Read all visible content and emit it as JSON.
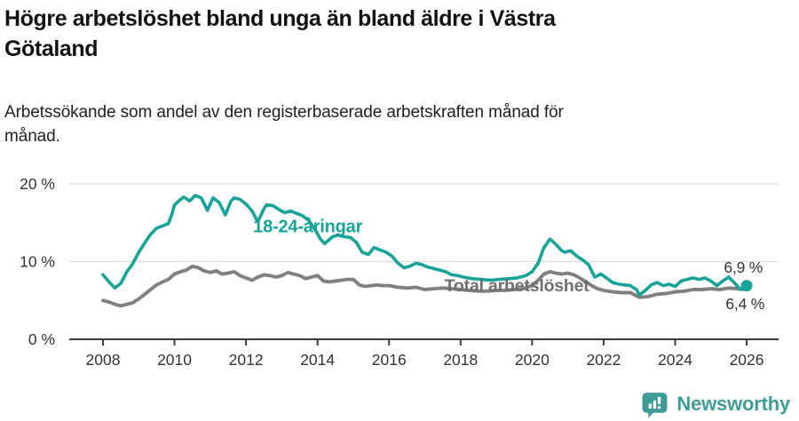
{
  "header": {
    "title_lines": [
      "Högre arbetslöshet bland unga än bland äldre i Västra",
      "Götaland"
    ],
    "subtitle_lines": [
      "Arbetssökande som andel av den registerbaserade arbetskraften månad för",
      "månad."
    ]
  },
  "chart_data": {
    "type": "line",
    "title": "Högre arbetslöshet bland unga än bland äldre i Västra Götaland",
    "subtitle": "Arbetssökande som andel av den registerbaserade arbetskraften månad för månad.",
    "unit": "%",
    "ylim": [
      0,
      20
    ],
    "xlim": [
      2007.9,
      2026.9
    ],
    "grid": "horizontal",
    "legend_position": "inline-labels",
    "colors": {
      "grid": "#dcdcdc",
      "axis": "#3a3a3a",
      "tick_text": "#333333"
    },
    "yticks": [
      {
        "value": 0,
        "label": "0 %"
      },
      {
        "value": 10,
        "label": "10 %"
      },
      {
        "value": 20,
        "label": "20 %"
      }
    ],
    "xticks": [
      {
        "value": 2008,
        "label": "2008"
      },
      {
        "value": 2010,
        "label": "2010"
      },
      {
        "value": 2012,
        "label": "2012"
      },
      {
        "value": 2014,
        "label": "2014"
      },
      {
        "value": 2016,
        "label": "2016"
      },
      {
        "value": 2018,
        "label": "2018"
      },
      {
        "value": 2020,
        "label": "2020"
      },
      {
        "value": 2022,
        "label": "2022"
      },
      {
        "value": 2024,
        "label": "2024"
      },
      {
        "value": 2026,
        "label": "2026"
      }
    ],
    "series": [
      {
        "name": "Total arbetslöshet",
        "color": "#808080",
        "width": 3.9,
        "end_marker": false,
        "end_value_label": "6,4 %",
        "x": [
          2008.0,
          2008.17,
          2008.33,
          2008.5,
          2008.67,
          2008.83,
          2009.0,
          2009.17,
          2009.33,
          2009.5,
          2009.67,
          2009.83,
          2010.0,
          2010.17,
          2010.33,
          2010.5,
          2010.67,
          2010.83,
          2011.0,
          2011.17,
          2011.33,
          2011.5,
          2011.67,
          2011.83,
          2012.0,
          2012.17,
          2012.33,
          2012.5,
          2012.67,
          2012.83,
          2013.0,
          2013.17,
          2013.33,
          2013.5,
          2013.67,
          2013.83,
          2014.0,
          2014.17,
          2014.33,
          2014.5,
          2014.67,
          2014.83,
          2015.0,
          2015.17,
          2015.33,
          2015.5,
          2015.67,
          2015.83,
          2016.0,
          2016.25,
          2016.5,
          2016.75,
          2017.0,
          2017.25,
          2017.5,
          2017.75,
          2018.0,
          2018.25,
          2018.5,
          2018.75,
          2019.0,
          2019.25,
          2019.5,
          2019.75,
          2020.0,
          2020.17,
          2020.33,
          2020.5,
          2020.67,
          2020.83,
          2021.0,
          2021.17,
          2021.33,
          2021.5,
          2021.67,
          2021.83,
          2022.0,
          2022.25,
          2022.5,
          2022.75,
          2023.0,
          2023.25,
          2023.5,
          2023.75,
          2024.0,
          2024.25,
          2024.5,
          2024.75,
          2025.0,
          2025.25,
          2025.5,
          2025.75,
          2026.0
        ],
        "values": [
          5.0,
          4.8,
          4.5,
          4.3,
          4.5,
          4.7,
          5.2,
          5.8,
          6.4,
          7.0,
          7.4,
          7.7,
          8.4,
          8.7,
          8.9,
          9.4,
          9.2,
          8.8,
          8.6,
          8.8,
          8.4,
          8.5,
          8.7,
          8.2,
          7.9,
          7.6,
          8.0,
          8.3,
          8.2,
          8.0,
          8.2,
          8.6,
          8.4,
          8.2,
          7.8,
          8.0,
          8.2,
          7.5,
          7.4,
          7.5,
          7.6,
          7.7,
          7.7,
          7.0,
          6.8,
          6.9,
          7.0,
          6.9,
          6.9,
          6.7,
          6.6,
          6.7,
          6.4,
          6.5,
          6.6,
          6.5,
          6.4,
          6.3,
          6.2,
          6.2,
          6.3,
          6.3,
          6.4,
          6.5,
          6.9,
          7.6,
          8.4,
          8.7,
          8.5,
          8.4,
          8.5,
          8.3,
          7.9,
          7.4,
          6.9,
          6.5,
          6.3,
          6.1,
          6.0,
          6.0,
          5.4,
          5.5,
          5.8,
          5.9,
          6.1,
          6.2,
          6.4,
          6.4,
          6.5,
          6.4,
          6.6,
          6.5,
          6.4
        ]
      },
      {
        "name": "18-24-åringar",
        "color": "#17a398",
        "width": 3.6,
        "end_marker": true,
        "end_value_label": "6,9 %",
        "x": [
          2008.0,
          2008.17,
          2008.33,
          2008.5,
          2008.67,
          2008.83,
          2009.0,
          2009.17,
          2009.33,
          2009.5,
          2009.67,
          2009.83,
          2009.92,
          2010.0,
          2010.17,
          2010.25,
          2010.33,
          2010.42,
          2010.58,
          2010.75,
          2010.92,
          2011.0,
          2011.08,
          2011.25,
          2011.42,
          2011.58,
          2011.67,
          2011.83,
          2012.0,
          2012.17,
          2012.33,
          2012.5,
          2012.58,
          2012.75,
          2012.92,
          2013.08,
          2013.25,
          2013.42,
          2013.58,
          2013.75,
          2013.92,
          2014.08,
          2014.2,
          2014.42,
          2014.58,
          2014.75,
          2014.92,
          2015.08,
          2015.25,
          2015.42,
          2015.58,
          2015.75,
          2015.92,
          2016.08,
          2016.25,
          2016.42,
          2016.58,
          2016.75,
          2016.92,
          2017.08,
          2017.25,
          2017.42,
          2017.58,
          2017.75,
          2017.92,
          2018.08,
          2018.33,
          2018.58,
          2018.83,
          2019.08,
          2019.33,
          2019.58,
          2019.83,
          2020.0,
          2020.17,
          2020.33,
          2020.5,
          2020.67,
          2020.83,
          2020.92,
          2021.08,
          2021.25,
          2021.42,
          2021.58,
          2021.75,
          2021.92,
          2022.08,
          2022.25,
          2022.42,
          2022.58,
          2022.75,
          2022.92,
          2023.0,
          2023.17,
          2023.33,
          2023.5,
          2023.67,
          2023.83,
          2024.0,
          2024.17,
          2024.33,
          2024.5,
          2024.67,
          2024.83,
          2025.0,
          2025.17,
          2025.33,
          2025.5,
          2025.67,
          2025.83,
          2026.0
        ],
        "values": [
          8.3,
          7.4,
          6.6,
          7.2,
          8.7,
          9.7,
          11.2,
          12.4,
          13.5,
          14.3,
          14.6,
          14.9,
          16.0,
          17.3,
          18.0,
          18.3,
          18.1,
          17.8,
          18.5,
          18.2,
          16.6,
          17.4,
          18.2,
          17.6,
          16.0,
          17.8,
          18.2,
          18.0,
          17.4,
          16.5,
          15.1,
          16.8,
          17.3,
          17.2,
          16.7,
          16.3,
          16.5,
          16.2,
          15.9,
          15.3,
          14.2,
          12.9,
          12.3,
          13.2,
          13.4,
          13.2,
          13.1,
          12.5,
          11.2,
          10.9,
          11.8,
          11.5,
          11.2,
          10.7,
          9.8,
          9.2,
          9.4,
          9.8,
          9.6,
          9.3,
          9.1,
          8.9,
          8.7,
          8.3,
          8.2,
          8.0,
          7.8,
          7.7,
          7.6,
          7.7,
          7.8,
          7.9,
          8.2,
          8.7,
          9.8,
          11.8,
          12.9,
          12.2,
          11.4,
          11.2,
          11.4,
          10.7,
          10.2,
          9.6,
          8.0,
          8.4,
          7.9,
          7.3,
          7.1,
          7.0,
          6.9,
          6.4,
          5.7,
          6.3,
          7.0,
          7.3,
          6.9,
          7.1,
          6.8,
          7.5,
          7.7,
          7.9,
          7.7,
          7.9,
          7.5,
          6.9,
          7.5,
          8.0,
          7.2,
          6.4,
          6.9
        ]
      }
    ],
    "annotations": [
      {
        "text": "18-24-åringar",
        "x": 2012.2,
        "y": 13.8,
        "color": "#17a398",
        "size": 20,
        "weight": "bold",
        "anchor": "start"
      },
      {
        "text": "Total arbetslöshet",
        "x": 2017.55,
        "y": 6.2,
        "color": "#6f6f6f",
        "size": 19.5,
        "weight": "bold",
        "anchor": "start"
      },
      {
        "text": "6,9 %",
        "x": 2026.45,
        "y": 8.6,
        "color": "#333333",
        "size": 17.5,
        "weight": "normal",
        "anchor": "end"
      },
      {
        "text": "6,4 %",
        "x": 2026.5,
        "y": 3.9,
        "color": "#333333",
        "size": 17.5,
        "weight": "normal",
        "anchor": "end"
      }
    ]
  },
  "footer": {
    "brand": "Newsworthy",
    "brand_color": "#3e9c96",
    "logo_icon": "bar-chart-speech-bubble-icon"
  }
}
